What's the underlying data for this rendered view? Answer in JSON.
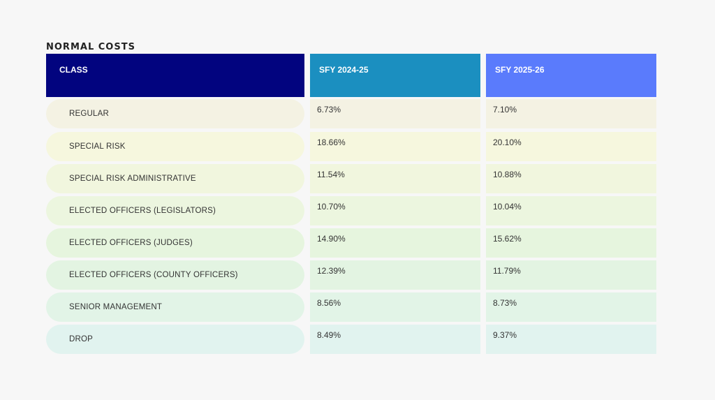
{
  "title": "NORMAL COSTS",
  "headers": {
    "class": "CLASS",
    "col_a": "SFY 2024-25",
    "col_b": "SFY 2025-26"
  },
  "rows": [
    {
      "label": "REGULAR",
      "a": "6.73%",
      "b": "7.10%",
      "color": "#f4f2e3"
    },
    {
      "label": "SPECIAL RISK",
      "a": "18.66%",
      "b": "20.10%",
      "color": "#f6f7de"
    },
    {
      "label": "SPECIAL RISK ADMINISTRATIVE",
      "a": "11.54%",
      "b": "10.88%",
      "color": "#f1f6de"
    },
    {
      "label": "ELECTED OFFICERS (LEGISLATORS)",
      "a": "10.70%",
      "b": "10.04%",
      "color": "#ecf6df"
    },
    {
      "label": "ELECTED OFFICERS (JUDGES)",
      "a": "14.90%",
      "b": "15.62%",
      "color": "#e6f5de"
    },
    {
      "label": "ELECTED OFFICERS (COUNTY OFFICERS)",
      "a": "12.39%",
      "b": "11.79%",
      "color": "#e3f4e2"
    },
    {
      "label": "SENIOR MANAGEMENT",
      "a": "8.56%",
      "b": "8.73%",
      "color": "#e2f4e7"
    },
    {
      "label": "DROP",
      "a": "8.49%",
      "b": "9.37%",
      "color": "#e1f3ef"
    }
  ]
}
